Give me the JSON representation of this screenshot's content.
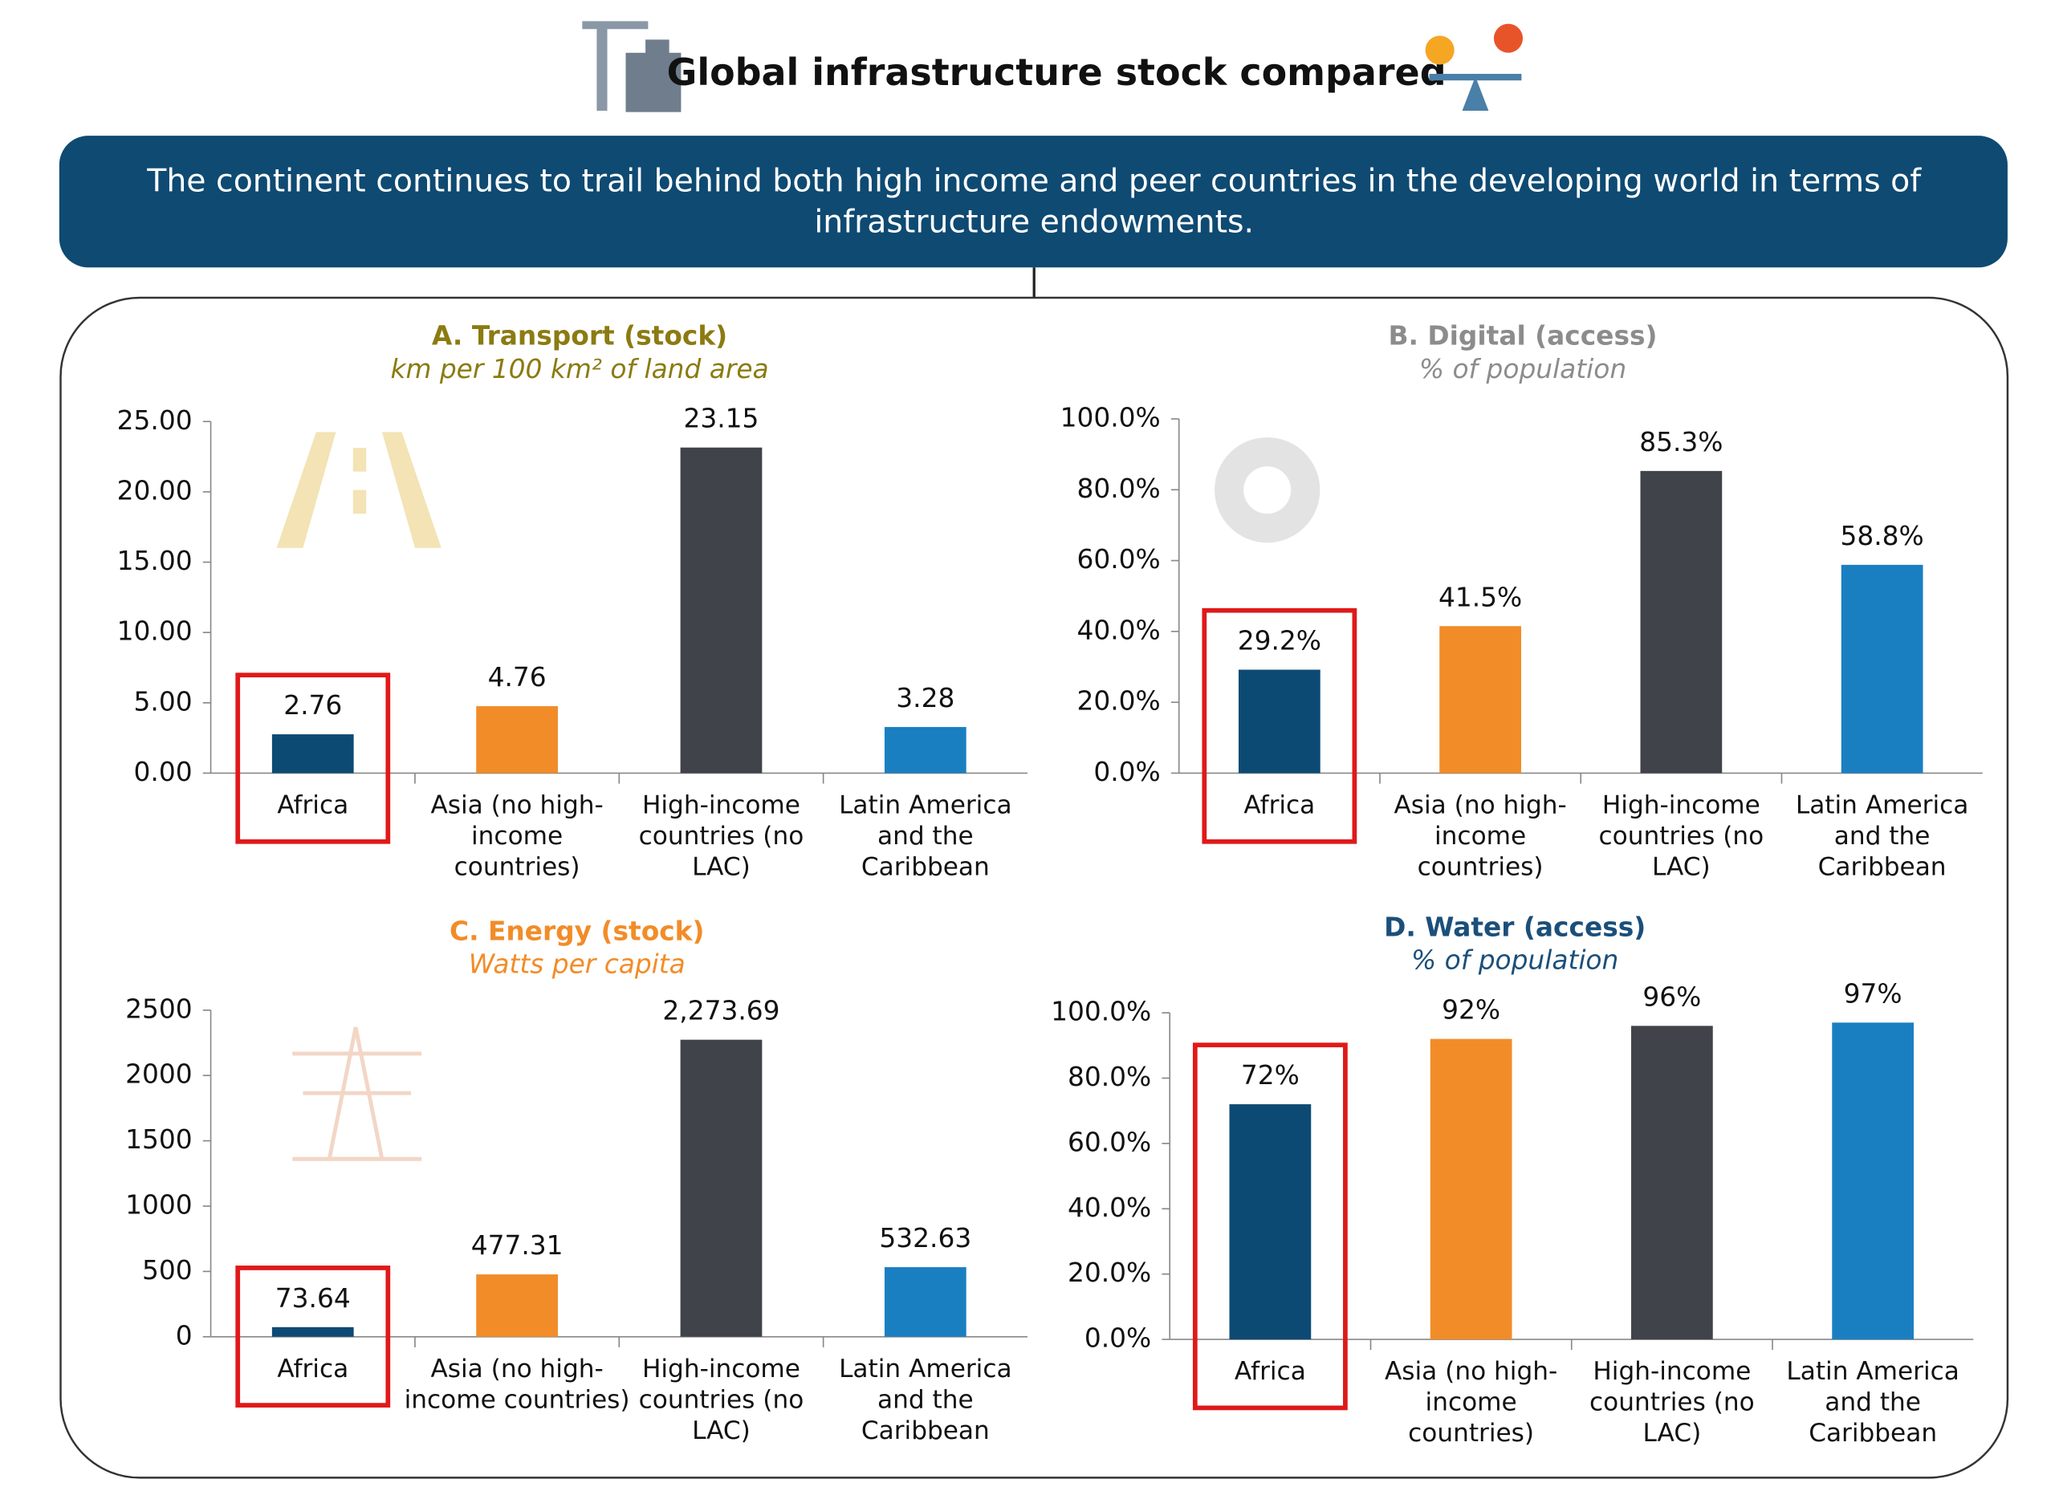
{
  "header": {
    "title": "Global infrastructure stock compared",
    "banner_lines": [
      "The continent continues to trail behind both high income and peer countries in the developing world in terms of",
      "infrastructure endowments."
    ]
  },
  "chart_data": [
    {
      "type": "bar",
      "title": "A. Transport (stock)",
      "subtitle": "km per 100 km² of land area",
      "title_color": "#8b7b12",
      "categories": [
        "Africa",
        "Asia (no high-\nincome\ncountries)",
        "High-income\ncountries (no\nLAC)",
        "Latin America\nand the\nCaribbean"
      ],
      "values": [
        2.76,
        4.76,
        23.15,
        3.28
      ],
      "colors": [
        "#0d4a73",
        "#f28c28",
        "#40434a",
        "#1a7fc1"
      ],
      "ylim": [
        0,
        25
      ],
      "yticks": [
        {
          "value": 0,
          "label": "0.00"
        },
        {
          "value": 5,
          "label": "5.00"
        },
        {
          "value": 10,
          "label": "10.00"
        },
        {
          "value": 15,
          "label": "15.00"
        },
        {
          "value": 20,
          "label": "20.00"
        },
        {
          "value": 25,
          "label": "25.00"
        }
      ]
    },
    {
      "type": "bar",
      "title": "B. Digital (access)",
      "subtitle": "% of population",
      "title_color": "#8c8c8c",
      "categories": [
        "Africa",
        "Asia (no high-\nincome\ncountries)",
        "High-income\ncountries (no\nLAC)",
        "Latin America\nand the\nCaribbean"
      ],
      "values": [
        29.2,
        41.5,
        85.3,
        58.8
      ],
      "value_labels": [
        "29.2%",
        "41.5%",
        "85.3%",
        "58.8%"
      ],
      "colors": [
        "#0d4a73",
        "#f28c28",
        "#40434a",
        "#1a7fc1"
      ],
      "ylim": [
        0,
        100
      ],
      "yticks": [
        {
          "value": 0,
          "label": "0.0%"
        },
        {
          "value": 20,
          "label": "20.0%"
        },
        {
          "value": 40,
          "label": "40.0%"
        },
        {
          "value": 60,
          "label": "60.0%"
        },
        {
          "value": 80,
          "label": "80.0%"
        },
        {
          "value": 100,
          "label": "100.0%"
        }
      ]
    },
    {
      "type": "bar",
      "title": "C. Energy (stock)",
      "subtitle": "Watts per capita",
      "title_color": "#f28c28",
      "categories": [
        "Africa",
        "Asia (no high-\nincome countries)",
        "High-income\ncountries (no\nLAC)",
        "Latin America\nand the\nCaribbean"
      ],
      "values": [
        73.64,
        477.31,
        2273.69,
        532.63
      ],
      "value_labels": [
        "73.64",
        "477.31",
        "2,273.69",
        "532.63"
      ],
      "colors": [
        "#0d4a73",
        "#f28c28",
        "#40434a",
        "#1a7fc1"
      ],
      "ylim": [
        0,
        2500
      ],
      "yticks": [
        0,
        500,
        1000,
        1500,
        2000,
        2500
      ]
    },
    {
      "type": "bar",
      "title": "D. Water (access)",
      "subtitle": "% of population",
      "title_color": "#1b4f7a",
      "categories": [
        "Africa",
        "Asia (no high-\nincome\ncountries)",
        "High-income\ncountries (no\nLAC)",
        "Latin America\nand the\nCaribbean"
      ],
      "values": [
        72,
        92,
        96,
        97
      ],
      "value_labels": [
        "72%",
        "92%",
        "96%",
        "97%"
      ],
      "colors": [
        "#0d4a73",
        "#f28c28",
        "#40434a",
        "#1a7fc1"
      ],
      "ylim": [
        0,
        100
      ],
      "yticks": [
        {
          "value": 0,
          "label": "0.0%"
        },
        {
          "value": 20,
          "label": "20.0%"
        },
        {
          "value": 40,
          "label": "40.0%"
        },
        {
          "value": 60,
          "label": "60.0%"
        },
        {
          "value": 80,
          "label": "80.0%"
        },
        {
          "value": 100,
          "label": "100.0%"
        }
      ]
    }
  ]
}
